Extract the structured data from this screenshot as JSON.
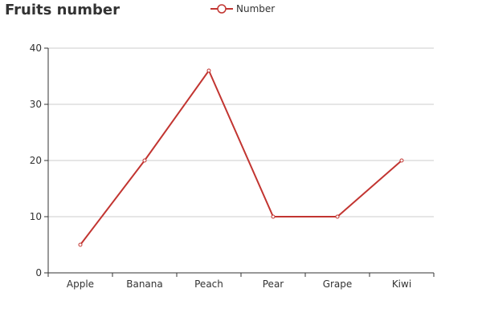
{
  "chart_data": {
    "type": "line",
    "title": "Fruits number",
    "categories": [
      "Apple",
      "Banana",
      "Peach",
      "Pear",
      "Grape",
      "Kiwi"
    ],
    "series": [
      {
        "name": "Number",
        "values": [
          5,
          20,
          36,
          10,
          10,
          20
        ],
        "color": "#c23531"
      }
    ],
    "yticks": [
      "0",
      "10",
      "20",
      "30",
      "40"
    ],
    "ylim": [
      0,
      40
    ],
    "xlabel": "",
    "ylabel": "",
    "grid": true,
    "legend_position": "top-center"
  }
}
